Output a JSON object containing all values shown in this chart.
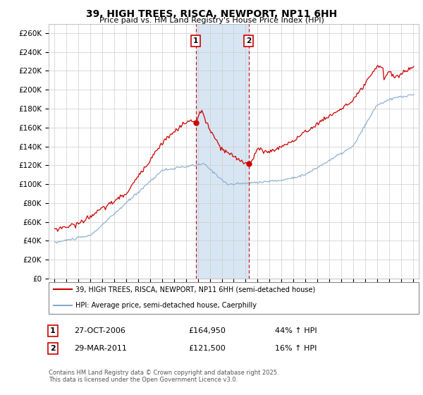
{
  "title": "39, HIGH TREES, RISCA, NEWPORT, NP11 6HH",
  "subtitle": "Price paid vs. HM Land Registry's House Price Index (HPI)",
  "ylabel_ticks": [
    0,
    20000,
    40000,
    60000,
    80000,
    100000,
    120000,
    140000,
    160000,
    180000,
    200000,
    220000,
    240000,
    260000
  ],
  "ylim": [
    0,
    270000
  ],
  "x_start_year": 1995,
  "x_end_year": 2025,
  "sale1_date": "27-OCT-2006",
  "sale1_price": 164950,
  "sale1_hpi": "44% ↑ HPI",
  "sale1_x": 2006.82,
  "sale2_date": "29-MAR-2011",
  "sale2_price": 121500,
  "sale2_hpi": "16% ↑ HPI",
  "sale2_x": 2011.25,
  "shade_color": "#cfe0f0",
  "vline_color": "#cc0000",
  "red_line_color": "#cc0000",
  "blue_line_color": "#88aacc",
  "background_color": "#ffffff",
  "grid_color": "#cccccc",
  "legend_label_red": "39, HIGH TREES, RISCA, NEWPORT, NP11 6HH (semi-detached house)",
  "legend_label_blue": "HPI: Average price, semi-detached house, Caerphilly",
  "footer": "Contains HM Land Registry data © Crown copyright and database right 2025.\nThis data is licensed under the Open Government Licence v3.0."
}
